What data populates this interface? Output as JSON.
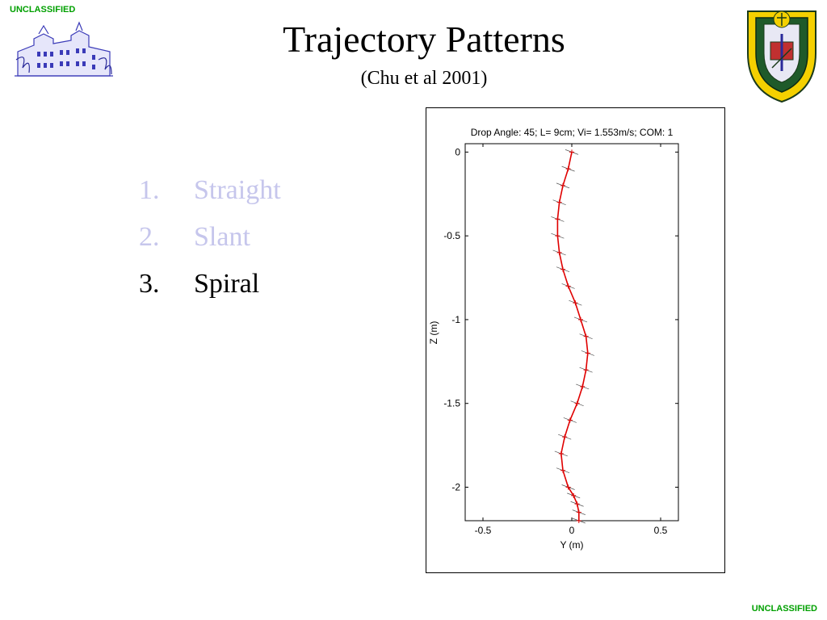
{
  "header": {
    "classification_top": "UNCLASSIFIED",
    "title": "Trajectory Patterns",
    "subtitle": "(Chu et al 2001)"
  },
  "footer": {
    "classification_bottom": "UNCLASSIFIED"
  },
  "logos": {
    "left": "building-logo",
    "right": "naval-postgraduate-school-seal"
  },
  "list": {
    "items": [
      {
        "num": "1.",
        "label": "Straight",
        "state": "dim"
      },
      {
        "num": "2.",
        "label": "Slant",
        "state": "dim"
      },
      {
        "num": "3.",
        "label": "Spiral",
        "state": "active"
      }
    ]
  },
  "colors": {
    "classification": "#00a000",
    "dimmed_text": "#c6c6ec",
    "trajectory": "#e00000"
  },
  "chart_data": {
    "type": "line",
    "title": "Drop Angle: 45; L= 9cm; Vi= 1.553m/s; COM: 1",
    "xlabel": "Y (m)",
    "ylabel": "Z (m)",
    "xlim": [
      -0.6,
      0.6
    ],
    "ylim": [
      -2.2,
      0.05
    ],
    "xticks": [
      "-0.5",
      "0",
      "0.5"
    ],
    "yticks": [
      "0",
      "-0.5",
      "-1",
      "-1.5",
      "-2"
    ],
    "grid": false,
    "series": [
      {
        "x": [
          0.0,
          -0.02,
          -0.05,
          -0.07,
          -0.08,
          -0.08,
          -0.07,
          -0.05,
          -0.02,
          0.02,
          0.05,
          0.08,
          0.09,
          0.08,
          0.06,
          0.03,
          -0.01,
          -0.04,
          -0.06,
          -0.05,
          -0.02,
          0.01,
          0.03,
          0.04,
          0.04
        ],
        "y": [
          0.0,
          -0.1,
          -0.2,
          -0.3,
          -0.4,
          -0.5,
          -0.6,
          -0.7,
          -0.8,
          -0.9,
          -1.0,
          -1.1,
          -1.2,
          -1.3,
          -1.4,
          -1.5,
          -1.6,
          -1.7,
          -1.8,
          -1.9,
          -2.0,
          -2.05,
          -2.1,
          -2.15,
          -2.2
        ]
      }
    ]
  }
}
